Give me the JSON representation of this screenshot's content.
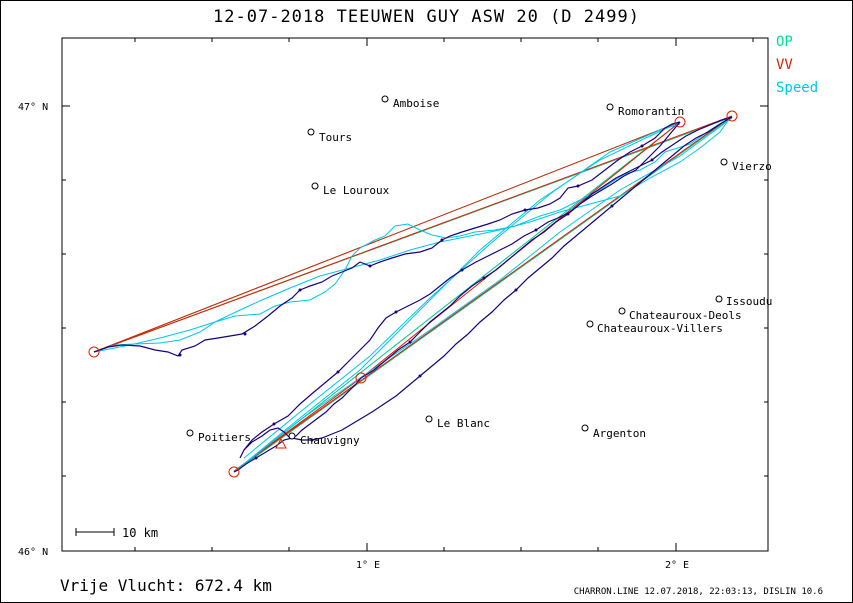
{
  "header": {
    "title": "12-07-2018   TEEUWEN GUY   ASW 20 (D 2499)"
  },
  "legend": {
    "items": [
      {
        "label": "OP",
        "color": "#00e09a"
      },
      {
        "label": "VV",
        "color": "#e02000"
      },
      {
        "label": "Speed",
        "color": "#00c8e8"
      }
    ]
  },
  "axes": {
    "lat_labels": [
      "47° N",
      "46° N"
    ],
    "lon_labels": [
      "1° E",
      "2° E"
    ]
  },
  "places": [
    {
      "name": "Amboise"
    },
    {
      "name": "Romorantin"
    },
    {
      "name": "Tours"
    },
    {
      "name": "Le Louroux"
    },
    {
      "name": "Vierzo"
    },
    {
      "name": "Issoudu"
    },
    {
      "name": "Chateauroux-Deols"
    },
    {
      "name": "Chateauroux-Villers"
    },
    {
      "name": "Poitiers"
    },
    {
      "name": "Chauvigny"
    },
    {
      "name": "Le Blanc"
    },
    {
      "name": "Argenton"
    }
  ],
  "scale_label": "10 km",
  "footer": {
    "distance": "Vrije Vlucht:  672.4 km",
    "info": "CHARRON.LINE 12.07.2018, 22:03:13, DISLIN 10.6"
  },
  "colors": {
    "track": "#1a0080",
    "op": "#00c890",
    "vv": "#e02000",
    "speed": "#00c8e8"
  }
}
